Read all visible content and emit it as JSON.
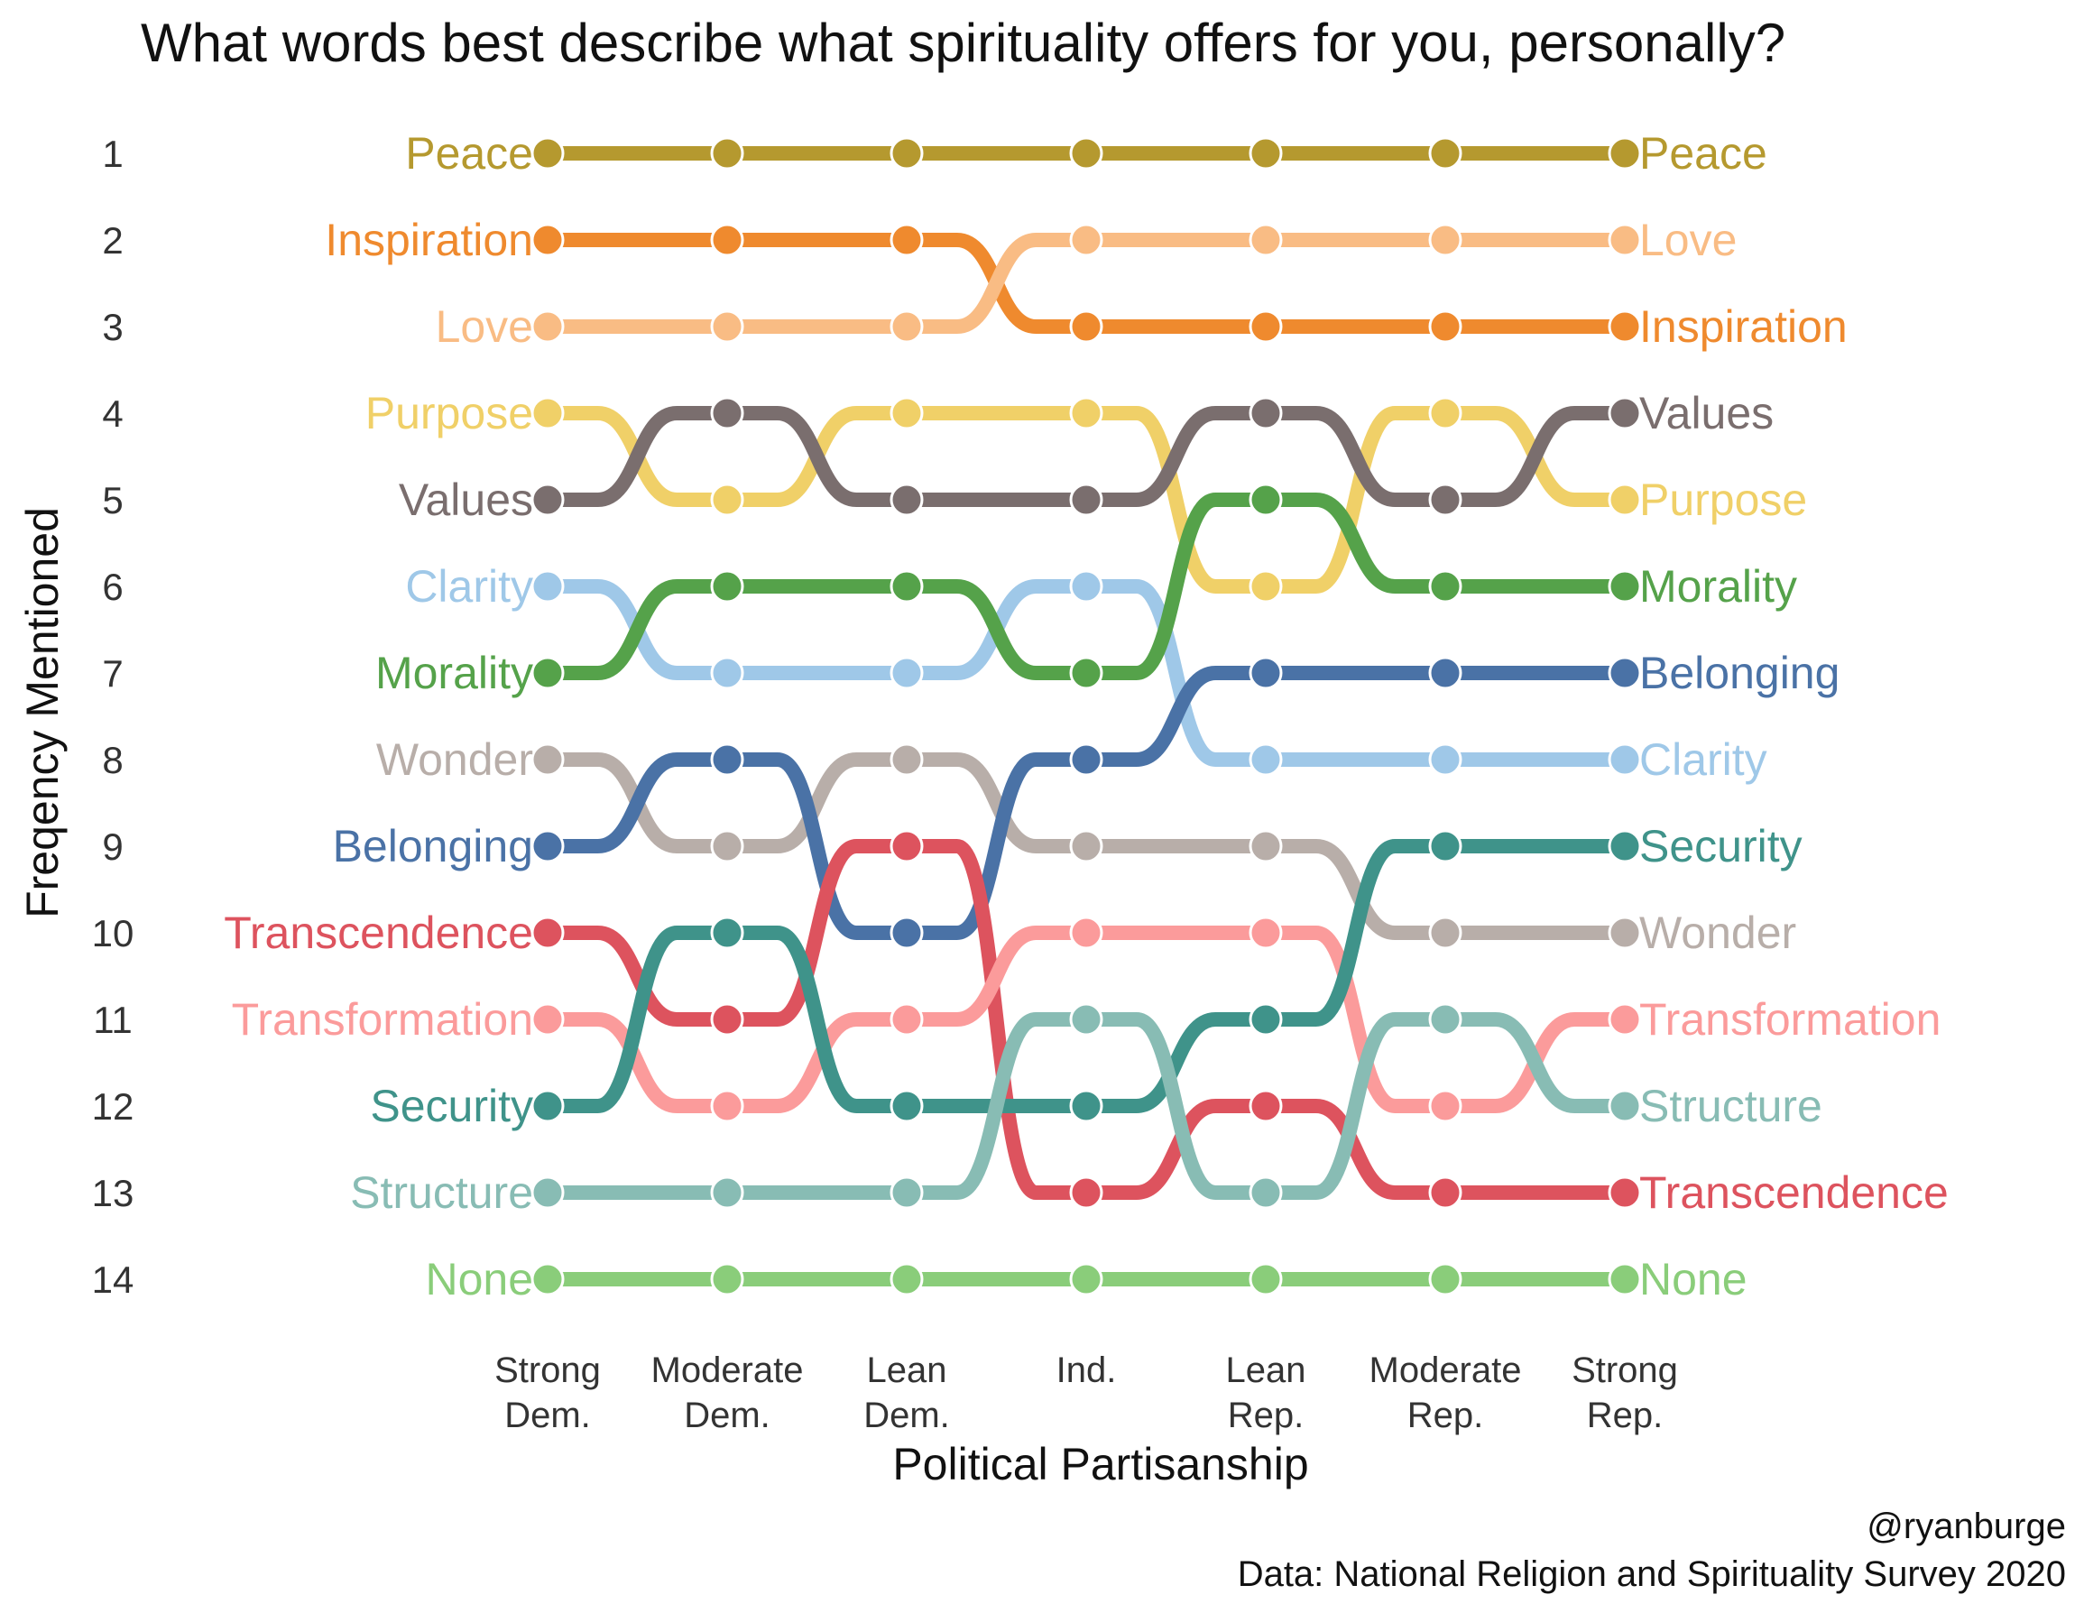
{
  "chart_data": {
    "type": "line",
    "subtype": "bump",
    "title": "What words best describe what spirituality offers for you, personally?",
    "xlabel": "Political Partisanship",
    "ylabel": "Freqency Mentioned",
    "categories": [
      [
        "Strong",
        "Dem."
      ],
      [
        "Moderate",
        "Dem."
      ],
      [
        "Lean",
        "Dem."
      ],
      [
        "Ind."
      ],
      [
        "Lean",
        "Rep."
      ],
      [
        "Moderate",
        "Rep."
      ],
      [
        "Strong",
        "Rep."
      ]
    ],
    "ranks": [
      "1",
      "2",
      "3",
      "4",
      "5",
      "6",
      "7",
      "8",
      "9",
      "10",
      "11",
      "12",
      "13",
      "14"
    ],
    "y_reversed": true,
    "series": [
      {
        "name": "Peace",
        "color": "#b5992f",
        "values": [
          1,
          1,
          1,
          1,
          1,
          1,
          1
        ]
      },
      {
        "name": "Inspiration",
        "color": "#ef8a2e",
        "values": [
          2,
          2,
          2,
          3,
          3,
          3,
          3
        ]
      },
      {
        "name": "Love",
        "color": "#f9bc84",
        "values": [
          3,
          3,
          3,
          2,
          2,
          2,
          2
        ]
      },
      {
        "name": "Purpose",
        "color": "#f0d068",
        "values": [
          4,
          5,
          4,
          4,
          6,
          4,
          5
        ]
      },
      {
        "name": "Values",
        "color": "#7a6e6e",
        "values": [
          5,
          4,
          5,
          5,
          4,
          5,
          4
        ]
      },
      {
        "name": "Clarity",
        "color": "#9fc8e8",
        "values": [
          6,
          7,
          7,
          6,
          8,
          8,
          8
        ]
      },
      {
        "name": "Morality",
        "color": "#55a24a",
        "values": [
          7,
          6,
          6,
          7,
          5,
          6,
          6
        ]
      },
      {
        "name": "Wonder",
        "color": "#b8aea9",
        "values": [
          8,
          9,
          8,
          9,
          9,
          10,
          10
        ]
      },
      {
        "name": "Belonging",
        "color": "#4a72a6",
        "values": [
          9,
          8,
          10,
          8,
          7,
          7,
          7
        ]
      },
      {
        "name": "Transcendence",
        "color": "#dd535e",
        "values": [
          10,
          11,
          9,
          13,
          12,
          13,
          13
        ]
      },
      {
        "name": "Transformation",
        "color": "#fb9b9b",
        "values": [
          11,
          12,
          11,
          10,
          10,
          12,
          11
        ]
      },
      {
        "name": "Security",
        "color": "#3f938a",
        "values": [
          12,
          10,
          12,
          12,
          11,
          9,
          9
        ]
      },
      {
        "name": "Structure",
        "color": "#88bcb4",
        "values": [
          13,
          13,
          13,
          11,
          13,
          11,
          12
        ]
      },
      {
        "name": "None",
        "color": "#8acd7a",
        "values": [
          14,
          14,
          14,
          14,
          14,
          14,
          14
        ]
      }
    ],
    "grid": false,
    "legend": "none"
  },
  "credit": "@ryanburge",
  "source": "Data: National Religion and Spirituality Survey 2020"
}
